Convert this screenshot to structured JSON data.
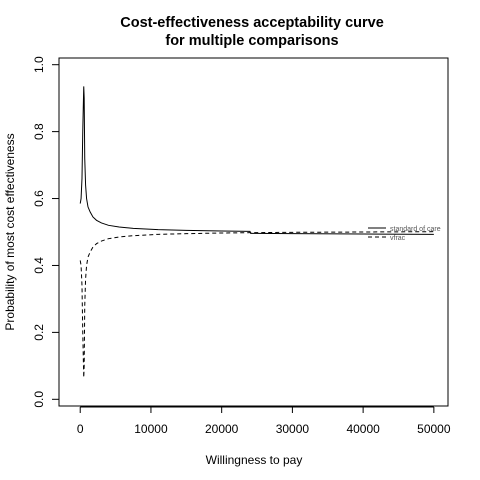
{
  "chart_data": {
    "type": "line",
    "title_lines": [
      "Cost-effectiveness acceptability curve",
      "for multiple comparisons"
    ],
    "xlabel": "Willingness to pay",
    "ylabel": "Probability of most cost effectiveness",
    "xlim": [
      -3000,
      52000
    ],
    "ylim": [
      -0.02,
      1.02
    ],
    "x_ticks": [
      0,
      10000,
      20000,
      30000,
      40000,
      50000
    ],
    "y_ticks": [
      0.0,
      0.2,
      0.4,
      0.6,
      0.8,
      1.0
    ],
    "x_tick_labels": [
      "0",
      "10000",
      "20000",
      "30000",
      "40000",
      "50000"
    ],
    "y_tick_labels": [
      "0.0",
      "0.2",
      "0.4",
      "0.6",
      "0.8",
      "1.0"
    ],
    "grid": false,
    "legend_position": "right",
    "series": [
      {
        "name": "standard of care",
        "style": "solid",
        "color": "#000000",
        "x": [
          0,
          120,
          250,
          360,
          440,
          500,
          560,
          640,
          760,
          900,
          1100,
          1400,
          1800,
          2300,
          3000,
          4000,
          5500,
          7500,
          11000,
          15000,
          20000,
          24000,
          24100,
          30000,
          40000,
          50000
        ],
        "y": [
          0.585,
          0.6,
          0.66,
          0.8,
          0.88,
          0.935,
          0.9,
          0.72,
          0.64,
          0.6,
          0.575,
          0.56,
          0.545,
          0.535,
          0.527,
          0.52,
          0.515,
          0.511,
          0.507,
          0.505,
          0.503,
          0.502,
          0.496,
          0.495,
          0.494,
          0.493
        ]
      },
      {
        "name": "vfrac",
        "style": "dashed",
        "color": "#000000",
        "x": [
          0,
          120,
          250,
          360,
          440,
          500,
          560,
          640,
          760,
          900,
          1100,
          1400,
          1800,
          2300,
          3000,
          4000,
          5500,
          7500,
          11000,
          15000,
          20000,
          24000,
          30000,
          40000,
          50000
        ],
        "y": [
          0.415,
          0.4,
          0.34,
          0.2,
          0.12,
          0.065,
          0.1,
          0.28,
          0.36,
          0.4,
          0.425,
          0.44,
          0.455,
          0.465,
          0.473,
          0.48,
          0.485,
          0.489,
          0.493,
          0.495,
          0.497,
          0.498,
          0.499,
          0.5,
          0.501
        ]
      }
    ]
  }
}
